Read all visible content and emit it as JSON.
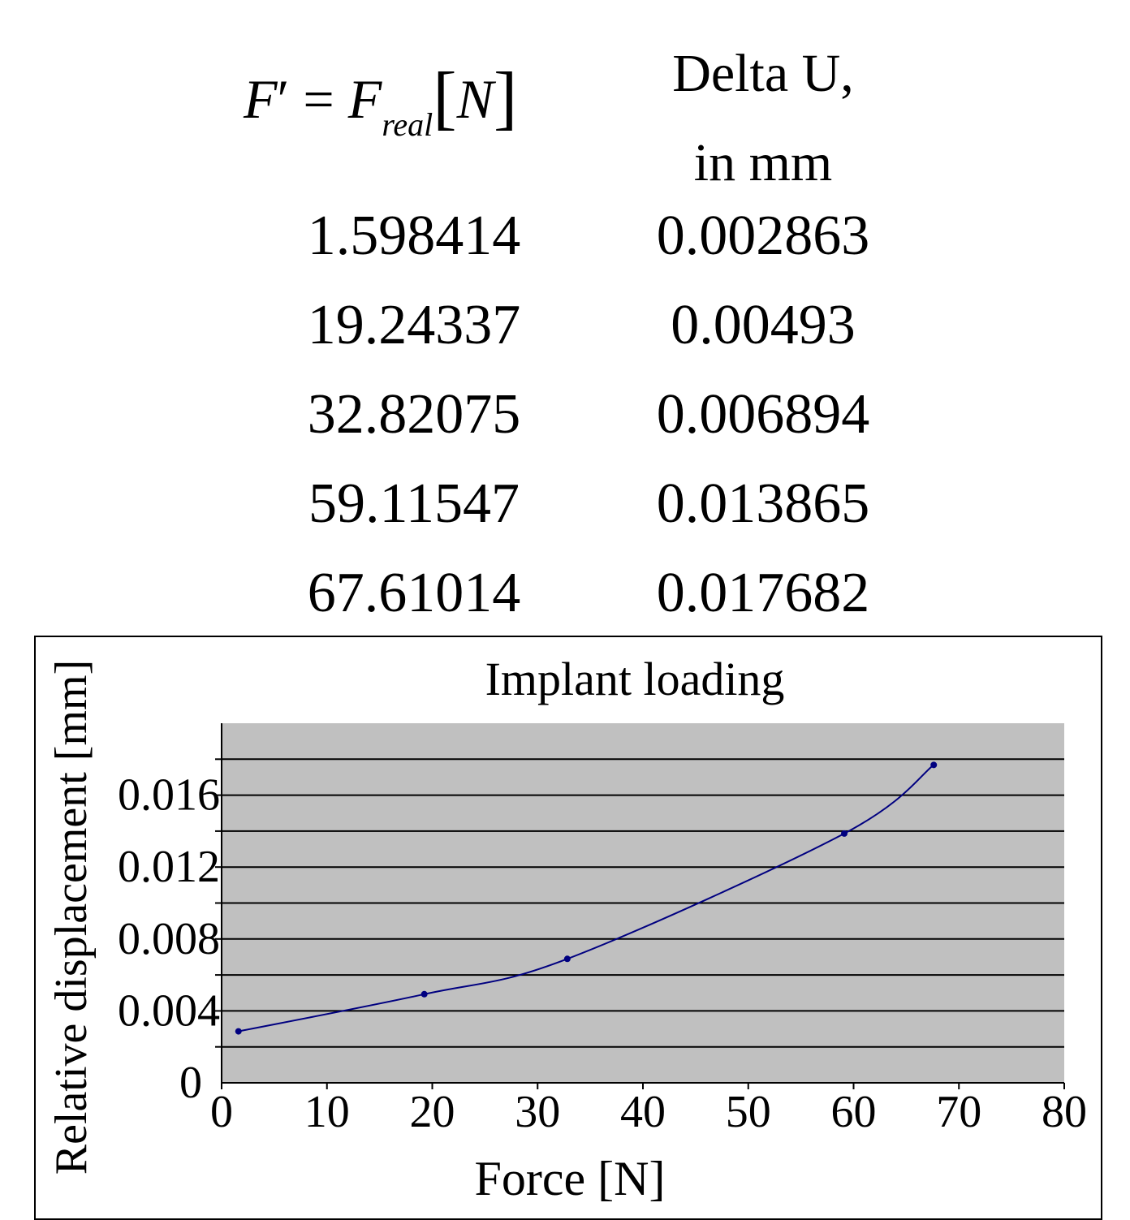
{
  "table": {
    "header_col1_formula": {
      "F": "F",
      "prime": "′",
      "eq": "=",
      "Freal": "F",
      "sub": "real",
      "lb": "[",
      "N": "N",
      "rb": "]"
    },
    "header_col2_line1": "Delta U,",
    "header_col2_line2": "in mm",
    "rows": [
      {
        "force": "1.598414",
        "delta_u": "0.002863"
      },
      {
        "force": "19.24337",
        "delta_u": "0.00493"
      },
      {
        "force": "32.82075",
        "delta_u": "0.006894"
      },
      {
        "force": "59.11547",
        "delta_u": "0.013865"
      },
      {
        "force": "67.61014",
        "delta_u": "0.017682"
      }
    ]
  },
  "chart_data": {
    "type": "line",
    "title": "Implant loading",
    "xlabel": "Force [N]",
    "ylabel": "Relative displacement [mm]",
    "xlim": [
      0,
      80
    ],
    "ylim": [
      0,
      0.02
    ],
    "x_ticks": [
      0,
      10,
      20,
      30,
      40,
      50,
      60,
      70,
      80
    ],
    "y_tick_labels": [
      {
        "value": 0,
        "label": "0"
      },
      {
        "value": 0.004,
        "label": "0.004"
      },
      {
        "value": 0.008,
        "label": "0.008"
      },
      {
        "value": 0.012,
        "label": "0.012"
      },
      {
        "value": 0.016,
        "label": "0.016"
      }
    ],
    "gridlines_every": 0.002,
    "grid": true,
    "legend": false,
    "plot_background": "#c0c0c0",
    "series": [
      {
        "x": [
          1.598414,
          19.24337,
          32.82075,
          59.11547,
          67.61014
        ],
        "y": [
          0.002863,
          0.00493,
          0.006894,
          0.013865,
          0.017682
        ],
        "color": "#000080"
      }
    ]
  }
}
